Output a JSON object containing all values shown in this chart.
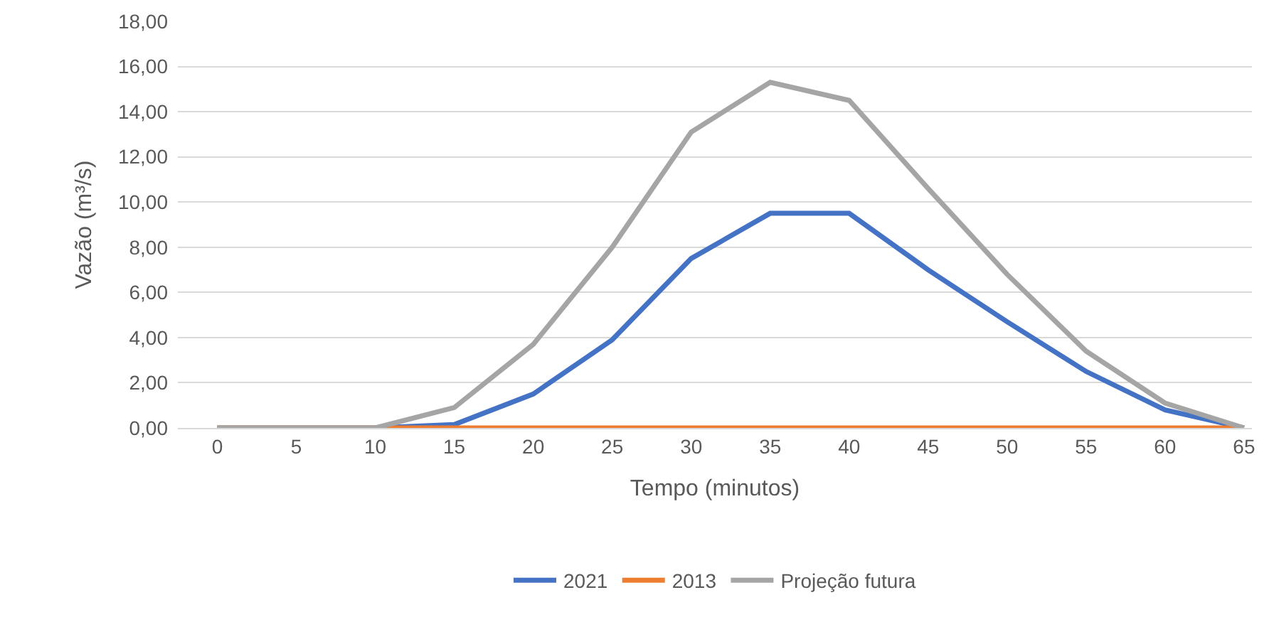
{
  "chart_data": {
    "type": "line",
    "xlabel": "Tempo (minutos)",
    "ylabel": "Vazão (m³/s)",
    "categories": [
      "0",
      "5",
      "10",
      "15",
      "20",
      "25",
      "30",
      "35",
      "40",
      "45",
      "50",
      "55",
      "60",
      "65"
    ],
    "series": [
      {
        "name": "2021",
        "color": "#4472c4",
        "values": [
          0,
          0,
          0,
          0.15,
          1.5,
          3.9,
          7.5,
          9.5,
          9.5,
          7.0,
          4.7,
          2.5,
          0.8,
          0
        ]
      },
      {
        "name": "2013",
        "color": "#ed7d31",
        "values": [
          0,
          0,
          0,
          0,
          0,
          0,
          0,
          0,
          0,
          0,
          0,
          0,
          0,
          0
        ]
      },
      {
        "name": "Projeção futura",
        "color": "#a5a5a5",
        "values": [
          0,
          0,
          0,
          0.9,
          3.7,
          8.0,
          13.1,
          15.3,
          14.5,
          10.6,
          6.8,
          3.4,
          1.1,
          0
        ]
      }
    ],
    "ylim": [
      0,
      18
    ],
    "yticks": [
      {
        "value": 0,
        "label": "0,00"
      },
      {
        "value": 2,
        "label": "2,00"
      },
      {
        "value": 4,
        "label": "4,00"
      },
      {
        "value": 6,
        "label": "6,00"
      },
      {
        "value": 8,
        "label": "8,00"
      },
      {
        "value": 10,
        "label": "10,00"
      },
      {
        "value": 12,
        "label": "12,00"
      },
      {
        "value": 14,
        "label": "14,00"
      },
      {
        "value": 16,
        "label": "16,00"
      },
      {
        "value": 18,
        "label": "18,00"
      }
    ],
    "grid": "y",
    "legend": "bottom",
    "marker": "none",
    "line_style": "solid"
  }
}
